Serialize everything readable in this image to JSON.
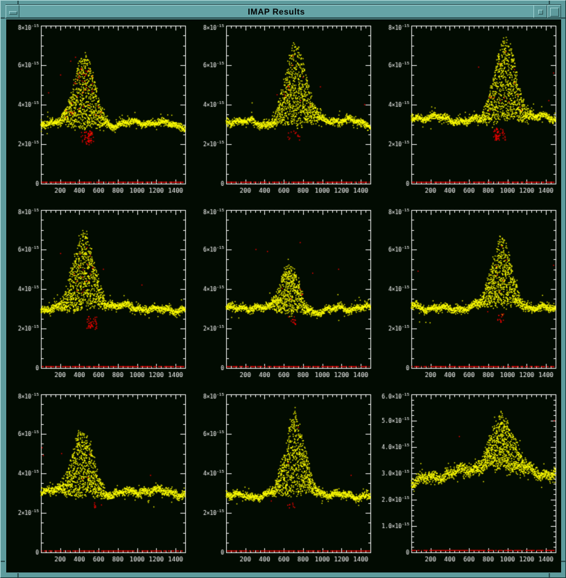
{
  "window": {
    "title": "IMAP Results",
    "controls": {
      "menu": "window-menu",
      "minimize": "minimize",
      "maximize": "maximize"
    },
    "colors": {
      "frame": "#5e9b9d",
      "frame_light": "#9ccfd0",
      "frame_dark": "#2e5354",
      "content_bg": "#020b02",
      "axis": "#ffffff",
      "data_point": "#ffff00",
      "flagged_point": "#ff0000"
    }
  },
  "chart_data": {
    "type": "scatter",
    "title": "IMAP Results",
    "layout": "3x3 grid of panels",
    "legend": "none",
    "grid_lines": "off",
    "x": {
      "min": 0,
      "max": 1500,
      "major_tick": 200,
      "minor_tick": 50,
      "tick_labels": [
        "200",
        "400",
        "600",
        "800",
        "1000",
        "1200",
        "1400"
      ]
    },
    "y_unit_exponent": "-15",
    "series_colors": {
      "data": "#ffff00",
      "flagged": "#ff0000"
    },
    "panels": [
      {
        "name": "panel-r1c1",
        "seed": 11,
        "ymax": 8,
        "y_major": 2,
        "y_minor": 0.5,
        "yticks": [
          {
            "v": 0,
            "b": "0",
            "e": ""
          },
          {
            "v": 2,
            "b": "2×10",
            "e": "-15"
          },
          {
            "v": 4,
            "b": "4×10",
            "e": "-15"
          },
          {
            "v": 6,
            "b": "6×10",
            "e": "-15"
          },
          {
            "v": 8,
            "b": "8×10",
            "e": "-15"
          }
        ],
        "baseline": 3.0,
        "noise": 0.09,
        "bump": {
          "center": 450,
          "sigma": 110,
          "peak": 6.7
        },
        "red": {
          "zero_y": 0.07,
          "cluster": {
            "x0": 230,
            "x1": 580,
            "y0": 1.95,
            "y1": 2.7,
            "n": 60
          },
          "bump_n": 40,
          "singles": [
            [
              205,
              5.5
            ],
            [
              310,
              6.2
            ],
            [
              80,
              4.6
            ],
            [
              360,
              6.4
            ]
          ]
        }
      },
      {
        "name": "panel-r1c2",
        "seed": 22,
        "ymax": 8,
        "y_major": 2,
        "y_minor": 0.5,
        "yticks": [
          {
            "v": 0,
            "b": "0",
            "e": ""
          },
          {
            "v": 2,
            "b": "2×10",
            "e": "-15"
          },
          {
            "v": 4,
            "b": "4×10",
            "e": "-15"
          },
          {
            "v": 6,
            "b": "6×10",
            "e": "-15"
          },
          {
            "v": 8,
            "b": "8×10",
            "e": "-15"
          }
        ],
        "baseline": 3.1,
        "noise": 0.09,
        "bump": {
          "center": 725,
          "sigma": 110,
          "peak": 7.2
        },
        "red": {
          "zero_y": 0.07,
          "cluster": {
            "x0": 640,
            "x1": 800,
            "y0": 2.2,
            "y1": 2.7,
            "n": 14
          },
          "bump_n": 10,
          "singles": [
            [
              980,
              4.9
            ],
            [
              1440,
              4.0
            ],
            [
              530,
              4.5
            ]
          ]
        }
      },
      {
        "name": "panel-r1c3",
        "seed": 33,
        "ymax": 8,
        "y_major": 2,
        "y_minor": 0.5,
        "yticks": [
          {
            "v": 0,
            "b": "0",
            "e": ""
          },
          {
            "v": 2,
            "b": "2×10",
            "e": "-15"
          },
          {
            "v": 4,
            "b": "4×10",
            "e": "-15"
          },
          {
            "v": 6,
            "b": "6×10",
            "e": "-15"
          },
          {
            "v": 8,
            "b": "8×10",
            "e": "-15"
          }
        ],
        "baseline": 3.25,
        "noise": 0.09,
        "bump": {
          "center": 975,
          "sigma": 115,
          "peak": 7.3
        },
        "red": {
          "zero_y": 0.07,
          "cluster": {
            "x0": 850,
            "x1": 1150,
            "y0": 2.2,
            "y1": 2.8,
            "n": 55
          },
          "bump_n": 14,
          "singles": [
            [
              700,
              5.9
            ],
            [
              1430,
              4.2
            ],
            [
              1480,
              5.6
            ]
          ]
        }
      },
      {
        "name": "panel-r2c1",
        "seed": 44,
        "ymax": 8,
        "y_major": 2,
        "y_minor": 0.5,
        "yticks": [
          {
            "v": 0,
            "b": "0",
            "e": ""
          },
          {
            "v": 2,
            "b": "2×10",
            "e": "-15"
          },
          {
            "v": 4,
            "b": "4×10",
            "e": "-15"
          },
          {
            "v": 6,
            "b": "6×10",
            "e": "-15"
          },
          {
            "v": 8,
            "b": "8×10",
            "e": "-15"
          }
        ],
        "baseline": 3.05,
        "noise": 0.09,
        "bump": {
          "center": 440,
          "sigma": 110,
          "peak": 6.9
        },
        "red": {
          "zero_y": 0.07,
          "cluster": {
            "x0": 340,
            "x1": 580,
            "y0": 1.95,
            "y1": 2.6,
            "n": 42
          },
          "bump_n": 18,
          "singles": [
            [
              650,
              5.0
            ],
            [
              205,
              5.8
            ],
            [
              1050,
              4.2
            ]
          ]
        }
      },
      {
        "name": "panel-r2c2",
        "seed": 55,
        "ymax": 8,
        "y_major": 2,
        "y_minor": 0.5,
        "yticks": [
          {
            "v": 0,
            "b": "0",
            "e": ""
          },
          {
            "v": 2,
            "b": "2×10",
            "e": "-15"
          },
          {
            "v": 4,
            "b": "4×10",
            "e": "-15"
          },
          {
            "v": 6,
            "b": "6×10",
            "e": "-15"
          },
          {
            "v": 8,
            "b": "8×10",
            "e": "-15"
          }
        ],
        "baseline": 2.95,
        "noise": 0.09,
        "bump": {
          "center": 655,
          "sigma": 95,
          "peak": 5.4
        },
        "red": {
          "zero_y": 0.07,
          "cluster": {
            "x0": 560,
            "x1": 720,
            "y0": 2.2,
            "y1": 2.6,
            "n": 14
          },
          "bump_n": 6,
          "singles": [
            [
              310,
              6.0
            ],
            [
              770,
              6.35
            ],
            [
              1170,
              5.0
            ],
            [
              430,
              5.9
            ],
            [
              900,
              4.8
            ]
          ]
        }
      },
      {
        "name": "panel-r2c3",
        "seed": 66,
        "ymax": 8,
        "y_major": 2,
        "y_minor": 0.5,
        "yticks": [
          {
            "v": 0,
            "b": "0",
            "e": ""
          },
          {
            "v": 2,
            "b": "2×10",
            "e": "-15"
          },
          {
            "v": 4,
            "b": "4×10",
            "e": "-15"
          },
          {
            "v": 6,
            "b": "6×10",
            "e": "-15"
          },
          {
            "v": 8,
            "b": "8×10",
            "e": "-15"
          }
        ],
        "baseline": 3.1,
        "noise": 0.09,
        "bump": {
          "center": 935,
          "sigma": 100,
          "peak": 6.6
        },
        "red": {
          "zero_y": 0.07,
          "cluster": {
            "x0": 880,
            "x1": 975,
            "y0": 2.3,
            "y1": 2.75,
            "n": 14
          },
          "bump_n": 6,
          "singles": [
            [
              1480,
              5.2
            ],
            [
              795,
              2.85
            ],
            [
              70,
              4.9
            ]
          ]
        }
      },
      {
        "name": "panel-r3c1",
        "seed": 77,
        "ymax": 8,
        "y_major": 2,
        "y_minor": 0.5,
        "yticks": [
          {
            "v": 0,
            "b": "0",
            "e": ""
          },
          {
            "v": 2,
            "b": "2×10",
            "e": "-15"
          },
          {
            "v": 4,
            "b": "4×10",
            "e": "-15"
          },
          {
            "v": 6,
            "b": "6×10",
            "e": "-15"
          },
          {
            "v": 8,
            "b": "8×10",
            "e": "-15"
          }
        ],
        "baseline": 3.0,
        "noise": 0.1,
        "bump": {
          "center": 430,
          "sigma": 110,
          "peak": 6.3
        },
        "red": {
          "zero_y": 0.07,
          "cluster": {
            "x0": 490,
            "x1": 590,
            "y0": 2.25,
            "y1": 2.55,
            "n": 6
          },
          "bump_n": 4,
          "singles": [
            [
              12,
              5.3
            ],
            [
              215,
              5.0
            ],
            [
              630,
              2.4
            ],
            [
              1140,
              3.9
            ],
            [
              25,
              4.9
            ]
          ]
        }
      },
      {
        "name": "panel-r3c2",
        "seed": 88,
        "ymax": 8,
        "y_major": 2,
        "y_minor": 0.5,
        "yticks": [
          {
            "v": 0,
            "b": "0",
            "e": ""
          },
          {
            "v": 2,
            "b": "2×10",
            "e": "-15"
          },
          {
            "v": 4,
            "b": "4×10",
            "e": "-15"
          },
          {
            "v": 6,
            "b": "6×10",
            "e": "-15"
          },
          {
            "v": 8,
            "b": "8×10",
            "e": "-15"
          }
        ],
        "baseline": 2.95,
        "noise": 0.09,
        "bump": {
          "center": 715,
          "sigma": 100,
          "peak": 7.0
        },
        "red": {
          "zero_y": 0.07,
          "cluster": {
            "x0": 600,
            "x1": 770,
            "y0": 2.25,
            "y1": 2.5,
            "n": 8
          },
          "bump_n": 2,
          "singles": [
            [
              1300,
              3.9
            ],
            [
              470,
              2.6
            ]
          ]
        }
      },
      {
        "name": "panel-r3c3",
        "seed": 99,
        "ymax": 6,
        "y_major": 1,
        "y_minor": 0.2,
        "yticks": [
          {
            "v": 0,
            "b": "0",
            "e": ""
          },
          {
            "v": 1,
            "b": "1.0×10",
            "e": "-15"
          },
          {
            "v": 2,
            "b": "2.0×10",
            "e": "-15"
          },
          {
            "v": 3,
            "b": "3.0×10",
            "e": "-15"
          },
          {
            "v": 4,
            "b": "4.0×10",
            "e": "-15"
          },
          {
            "v": 5,
            "b": "5.0×10",
            "e": "-15"
          },
          {
            "v": 6,
            "b": "6.0×10",
            "e": "-15"
          }
        ],
        "baseline": 3.1,
        "noise": 0.1,
        "left_dip": {
          "depth": 0.4,
          "until": 360
        },
        "bump": {
          "center": 950,
          "sigma": 125,
          "peak": 5.1
        },
        "red": {
          "zero_y": 0.07,
          "cluster": null,
          "bump_n": 0,
          "singles": [
            [
              500,
              4.4
            ],
            [
              1485,
              5.0
            ]
          ]
        }
      }
    ]
  }
}
